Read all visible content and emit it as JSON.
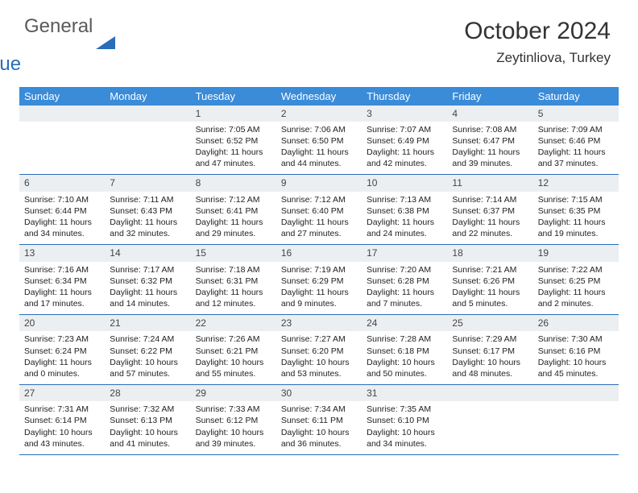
{
  "logo": {
    "word1": "General",
    "word2": "Blue"
  },
  "title": "October 2024",
  "location": "Zeytinliova, Turkey",
  "header_bg": "#3a8bd8",
  "daynum_bg": "#eceff2",
  "divider_color": "#2a6db8",
  "body_font_size": 10.5,
  "day_names": [
    "Sunday",
    "Monday",
    "Tuesday",
    "Wednesday",
    "Thursday",
    "Friday",
    "Saturday"
  ],
  "weeks": [
    [
      null,
      null,
      {
        "n": "1",
        "sunrise": "7:05 AM",
        "sunset": "6:52 PM",
        "dl": "11 hours and 47 minutes."
      },
      {
        "n": "2",
        "sunrise": "7:06 AM",
        "sunset": "6:50 PM",
        "dl": "11 hours and 44 minutes."
      },
      {
        "n": "3",
        "sunrise": "7:07 AM",
        "sunset": "6:49 PM",
        "dl": "11 hours and 42 minutes."
      },
      {
        "n": "4",
        "sunrise": "7:08 AM",
        "sunset": "6:47 PM",
        "dl": "11 hours and 39 minutes."
      },
      {
        "n": "5",
        "sunrise": "7:09 AM",
        "sunset": "6:46 PM",
        "dl": "11 hours and 37 minutes."
      }
    ],
    [
      {
        "n": "6",
        "sunrise": "7:10 AM",
        "sunset": "6:44 PM",
        "dl": "11 hours and 34 minutes."
      },
      {
        "n": "7",
        "sunrise": "7:11 AM",
        "sunset": "6:43 PM",
        "dl": "11 hours and 32 minutes."
      },
      {
        "n": "8",
        "sunrise": "7:12 AM",
        "sunset": "6:41 PM",
        "dl": "11 hours and 29 minutes."
      },
      {
        "n": "9",
        "sunrise": "7:12 AM",
        "sunset": "6:40 PM",
        "dl": "11 hours and 27 minutes."
      },
      {
        "n": "10",
        "sunrise": "7:13 AM",
        "sunset": "6:38 PM",
        "dl": "11 hours and 24 minutes."
      },
      {
        "n": "11",
        "sunrise": "7:14 AM",
        "sunset": "6:37 PM",
        "dl": "11 hours and 22 minutes."
      },
      {
        "n": "12",
        "sunrise": "7:15 AM",
        "sunset": "6:35 PM",
        "dl": "11 hours and 19 minutes."
      }
    ],
    [
      {
        "n": "13",
        "sunrise": "7:16 AM",
        "sunset": "6:34 PM",
        "dl": "11 hours and 17 minutes."
      },
      {
        "n": "14",
        "sunrise": "7:17 AM",
        "sunset": "6:32 PM",
        "dl": "11 hours and 14 minutes."
      },
      {
        "n": "15",
        "sunrise": "7:18 AM",
        "sunset": "6:31 PM",
        "dl": "11 hours and 12 minutes."
      },
      {
        "n": "16",
        "sunrise": "7:19 AM",
        "sunset": "6:29 PM",
        "dl": "11 hours and 9 minutes."
      },
      {
        "n": "17",
        "sunrise": "7:20 AM",
        "sunset": "6:28 PM",
        "dl": "11 hours and 7 minutes."
      },
      {
        "n": "18",
        "sunrise": "7:21 AM",
        "sunset": "6:26 PM",
        "dl": "11 hours and 5 minutes."
      },
      {
        "n": "19",
        "sunrise": "7:22 AM",
        "sunset": "6:25 PM",
        "dl": "11 hours and 2 minutes."
      }
    ],
    [
      {
        "n": "20",
        "sunrise": "7:23 AM",
        "sunset": "6:24 PM",
        "dl": "11 hours and 0 minutes."
      },
      {
        "n": "21",
        "sunrise": "7:24 AM",
        "sunset": "6:22 PM",
        "dl": "10 hours and 57 minutes."
      },
      {
        "n": "22",
        "sunrise": "7:26 AM",
        "sunset": "6:21 PM",
        "dl": "10 hours and 55 minutes."
      },
      {
        "n": "23",
        "sunrise": "7:27 AM",
        "sunset": "6:20 PM",
        "dl": "10 hours and 53 minutes."
      },
      {
        "n": "24",
        "sunrise": "7:28 AM",
        "sunset": "6:18 PM",
        "dl": "10 hours and 50 minutes."
      },
      {
        "n": "25",
        "sunrise": "7:29 AM",
        "sunset": "6:17 PM",
        "dl": "10 hours and 48 minutes."
      },
      {
        "n": "26",
        "sunrise": "7:30 AM",
        "sunset": "6:16 PM",
        "dl": "10 hours and 45 minutes."
      }
    ],
    [
      {
        "n": "27",
        "sunrise": "7:31 AM",
        "sunset": "6:14 PM",
        "dl": "10 hours and 43 minutes."
      },
      {
        "n": "28",
        "sunrise": "7:32 AM",
        "sunset": "6:13 PM",
        "dl": "10 hours and 41 minutes."
      },
      {
        "n": "29",
        "sunrise": "7:33 AM",
        "sunset": "6:12 PM",
        "dl": "10 hours and 39 minutes."
      },
      {
        "n": "30",
        "sunrise": "7:34 AM",
        "sunset": "6:11 PM",
        "dl": "10 hours and 36 minutes."
      },
      {
        "n": "31",
        "sunrise": "7:35 AM",
        "sunset": "6:10 PM",
        "dl": "10 hours and 34 minutes."
      },
      null,
      null
    ]
  ],
  "labels": {
    "sunrise": "Sunrise:",
    "sunset": "Sunset:",
    "daylight": "Daylight:"
  }
}
